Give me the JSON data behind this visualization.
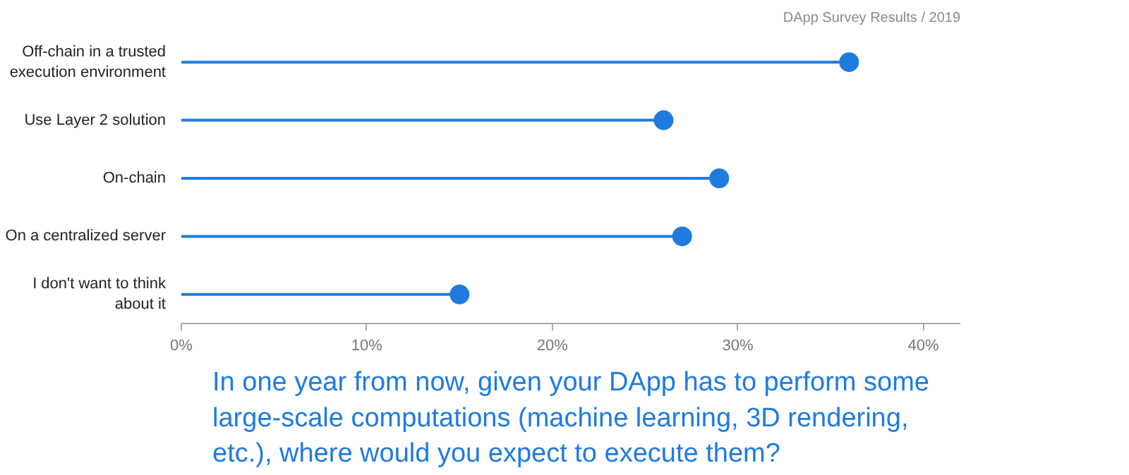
{
  "chart_data": {
    "type": "lollipop",
    "orientation": "horizontal",
    "title": "In one year from now, given your DApp has to perform some large-scale computations (machine learning, 3D rendering, etc.), where would you expect to execute them?",
    "annotations": [
      "DApp Survey Results / 2019"
    ],
    "categories": [
      "Off-chain in a trusted execution environment",
      "Use Layer 2 solution",
      "On-chain",
      "On a centralized server",
      "I don't want to think about it"
    ],
    "values": [
      36,
      26,
      29,
      27,
      15
    ],
    "color": "#1f7be0",
    "xlim": [
      0,
      42
    ],
    "xticks": [
      {
        "value": 0,
        "label": "0%"
      },
      {
        "value": 10,
        "label": "10%"
      },
      {
        "value": 20,
        "label": "20%"
      },
      {
        "value": 30,
        "label": "30%"
      },
      {
        "value": 40,
        "label": "40%"
      }
    ],
    "grid": false,
    "marker": "circle"
  }
}
